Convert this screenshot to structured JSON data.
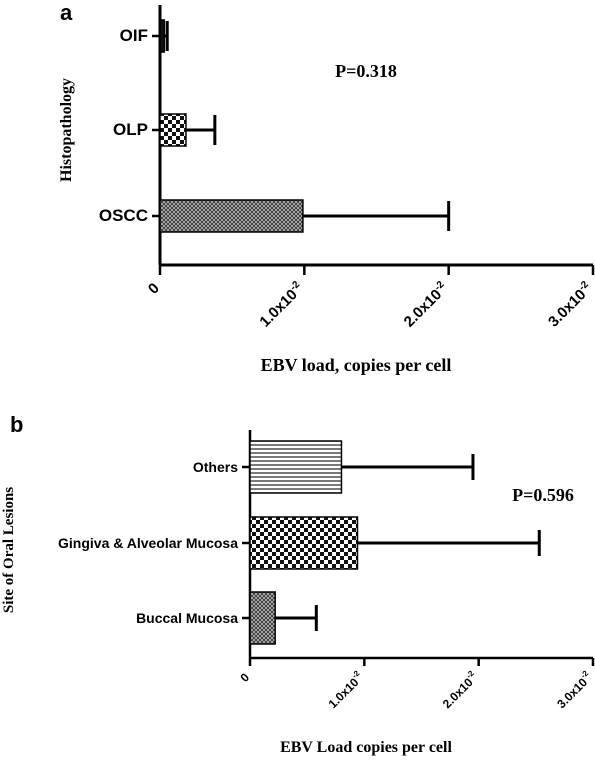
{
  "chart_data": [
    {
      "type": "bar",
      "orientation": "horizontal",
      "panel_label": "a",
      "categories": [
        "OIF",
        "OLP",
        "OSCC"
      ],
      "values": [
        0.0003,
        0.0018,
        0.0099
      ],
      "error_plus": [
        0.0002,
        0.002,
        0.0101
      ],
      "patterns": [
        "solid-dark",
        "checker",
        "fine-crosshatch"
      ],
      "xlim": [
        0,
        0.03
      ],
      "xticks": [
        0,
        0.01,
        0.02,
        0.03
      ],
      "xtick_labels": [
        "0",
        "1.0x10",
        "2.0x10",
        "3.0x10"
      ],
      "xtick_exponent": "-2",
      "xlabel": "EBV load, copies per cell",
      "ylabel": "Histopathology",
      "annotation": "P=0.318"
    },
    {
      "type": "bar",
      "orientation": "horizontal",
      "panel_label": "b",
      "categories": [
        "Others",
        "Gingiva & Alveolar Mucosa",
        "Buccal Mucosa"
      ],
      "values": [
        0.008,
        0.0094,
        0.0022
      ],
      "error_plus": [
        0.0115,
        0.0159,
        0.0036
      ],
      "patterns": [
        "horizontal-lines",
        "checker",
        "fine-crosshatch"
      ],
      "xlim": [
        0,
        0.03
      ],
      "xticks": [
        0,
        0.01,
        0.02,
        0.03
      ],
      "xtick_labels": [
        "0",
        "1.0x10",
        "2.0x10",
        "3.0x10"
      ],
      "xtick_exponent": "-2",
      "xlabel": "EBV Load copies per cell",
      "ylabel": "Site of Oral Lesions",
      "annotation": "P=0.596"
    }
  ]
}
